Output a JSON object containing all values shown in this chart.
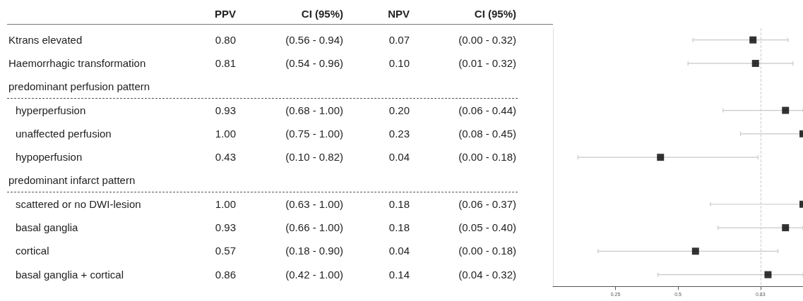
{
  "chart_data": [
    {
      "type": "other",
      "categories": [
        "Ktrans elevated",
        "Haemorrhagic transformation",
        "predominant perfusion pattern",
        "hyperperfusion",
        "unaffected perfusion",
        "hypoperfusion",
        "predominant infarct pattern",
        "scattered or no DWI-lesion",
        "basal ganglia",
        "cortical",
        "basal ganglia + cortical"
      ],
      "series": [
        {
          "name": "PPV",
          "values": [
            0.8,
            0.81,
            null,
            0.93,
            1.0,
            0.43,
            null,
            1.0,
            0.93,
            0.57,
            0.86
          ],
          "value_labels": [
            "0.80",
            "0.81",
            null,
            "0.93",
            "1.00",
            "0.43",
            null,
            "1.00",
            "0.93",
            "0.57",
            "0.86"
          ]
        },
        {
          "name": "NPV",
          "values": [
            0.07,
            0.1,
            null,
            0.2,
            0.23,
            0.04,
            null,
            0.18,
            0.18,
            0.04,
            0.14
          ],
          "value_labels": [
            "0.07",
            "0.10",
            null,
            "0.20",
            "0.23",
            "0.04",
            null,
            "0.18",
            "0.18",
            "0.04",
            "0.14"
          ]
        }
      ],
      "annotations": [
        "CI (95%)",
        "CI (95%)",
        "(0.56 - 0.94)",
        "(0.00 - 0.32)",
        "(0.54 - 0.96)",
        "(0.01 - 0.32)",
        "(0.68 - 1.00)",
        "(0.06 - 0.44)",
        "(0.75 - 1.00)",
        "(0.08 - 0.45)",
        "(0.10 - 0.82)",
        "(0.00 - 0.18)",
        "(0.63 - 1.00)",
        "(0.06 - 0.37)",
        "(0.66 - 1.00)",
        "(0.05 - 0.40)",
        "(0.18 - 0.90)",
        "(0.00 - 0.18)",
        "(0.42 - 1.00)",
        "(0.04 - 0.32)"
      ]
    },
    {
      "type": "scatter",
      "orientation": "horizontal",
      "marker": "square",
      "grid": false,
      "categories": [
        null,
        null,
        null,
        null,
        null,
        null,
        null,
        null,
        null,
        null,
        null
      ],
      "series": [
        {
          "color": "#000000",
          "values": [
            0.8,
            0.81,
            null,
            0.93,
            1.0,
            0.43,
            null,
            1.0,
            0.93,
            0.57,
            0.86
          ],
          "errors": [
            [
              0.56,
              0.94
            ],
            [
              0.54,
              0.96
            ],
            null,
            [
              0.68,
              1.0
            ],
            [
              0.75,
              1.0
            ],
            [
              0.1,
              0.82
            ],
            null,
            [
              0.63,
              1.0
            ],
            [
              0.66,
              1.0
            ],
            [
              0.18,
              0.9
            ],
            [
              0.42,
              1.0
            ]
          ]
        }
      ],
      "xlim": [
        0,
        1
      ],
      "xticks": [
        0.25,
        0.5,
        0.83
      ],
      "ref_lines": [
        {
          "axis": "x",
          "value": 0.83,
          "line_style": "dashed",
          "color": "#cccccc"
        }
      ]
    }
  ]
}
